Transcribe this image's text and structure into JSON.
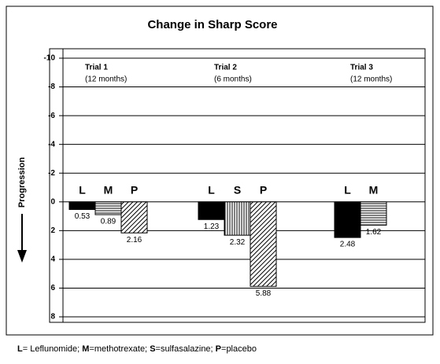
{
  "chart_data": {
    "type": "bar",
    "title": "Change in Sharp Score",
    "y_label": "Progression",
    "ylim": [
      -10,
      8
    ],
    "y_inverted": true,
    "yticks": [
      -10,
      -8,
      -6,
      -4,
      -2,
      0,
      2,
      4,
      6,
      8
    ],
    "grid": true,
    "groups": [
      {
        "title": "Trial 1",
        "subtitle": "(12 months)",
        "categories": [
          "L",
          "M",
          "P"
        ],
        "values": [
          0.53,
          0.89,
          2.16
        ],
        "patterns": [
          "solid",
          "hlines",
          "diagonal"
        ]
      },
      {
        "title": "Trial 2",
        "subtitle": "(6 months)",
        "categories": [
          "L",
          "S",
          "P"
        ],
        "values": [
          1.23,
          2.32,
          5.88
        ],
        "patterns": [
          "solid",
          "vlines",
          "diagonal"
        ]
      },
      {
        "title": "Trial 3",
        "subtitle": "(12 months)",
        "categories": [
          "L",
          "M"
        ],
        "values": [
          2.48,
          1.62
        ],
        "patterns": [
          "solid",
          "hlines"
        ]
      }
    ],
    "footnote": [
      {
        "bold": "L",
        "text": "= Leflunomide; "
      },
      {
        "bold": "M",
        "text": "=methotrexate; "
      },
      {
        "bold": "S",
        "text": "=sulfasalazine; "
      },
      {
        "bold": "P",
        "text": "=placebo"
      }
    ]
  }
}
